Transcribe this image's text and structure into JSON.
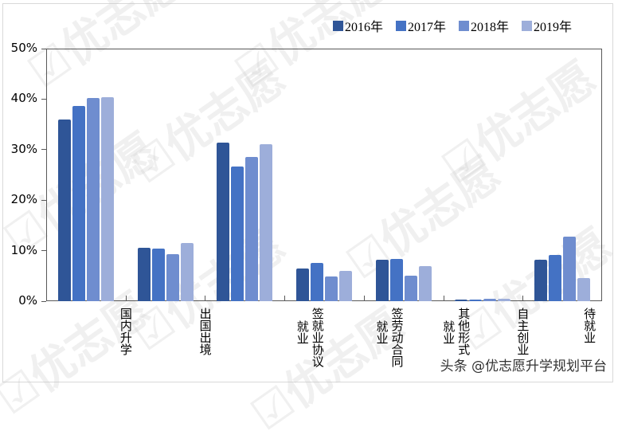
{
  "chart_data": {
    "type": "bar",
    "title": "",
    "xlabel": "",
    "ylabel": "",
    "ylim": [
      0,
      50
    ],
    "yticks": [
      "0%",
      "10%",
      "20%",
      "30%",
      "40%",
      "50%"
    ],
    "grid": false,
    "legend_position": "top-right",
    "categories": [
      "国内升学",
      "出国出境",
      "签就业协议就业",
      "签劳动合同就业",
      "其他形式就业",
      "自主创业",
      "待就业"
    ],
    "category_columns": [
      [
        "国内升学"
      ],
      [
        "出国出境"
      ],
      [
        "签就业协议",
        "就业"
      ],
      [
        "签劳动合同",
        "就业"
      ],
      [
        "其他形式",
        "就业"
      ],
      [
        "自主创业"
      ],
      [
        "待就业"
      ]
    ],
    "series": [
      {
        "name": "2016年",
        "color": "#2F5597",
        "values": [
          36.0,
          10.6,
          31.4,
          6.5,
          8.2,
          0.3,
          8.2
        ]
      },
      {
        "name": "2017年",
        "color": "#4472C4",
        "values": [
          38.6,
          10.4,
          26.7,
          7.5,
          8.3,
          0.3,
          9.1
        ]
      },
      {
        "name": "2018年",
        "color": "#6F8DCF",
        "values": [
          40.2,
          9.3,
          28.5,
          4.9,
          5.0,
          0.5,
          12.8
        ]
      },
      {
        "name": "2019年",
        "color": "#9DAEDA",
        "values": [
          40.4,
          11.5,
          31.1,
          6.0,
          6.9,
          0.5,
          4.6
        ]
      }
    ],
    "unit": "%"
  },
  "watermark": {
    "brand": "优志愿",
    "credit": "头条 @优志愿升学规划平台"
  }
}
